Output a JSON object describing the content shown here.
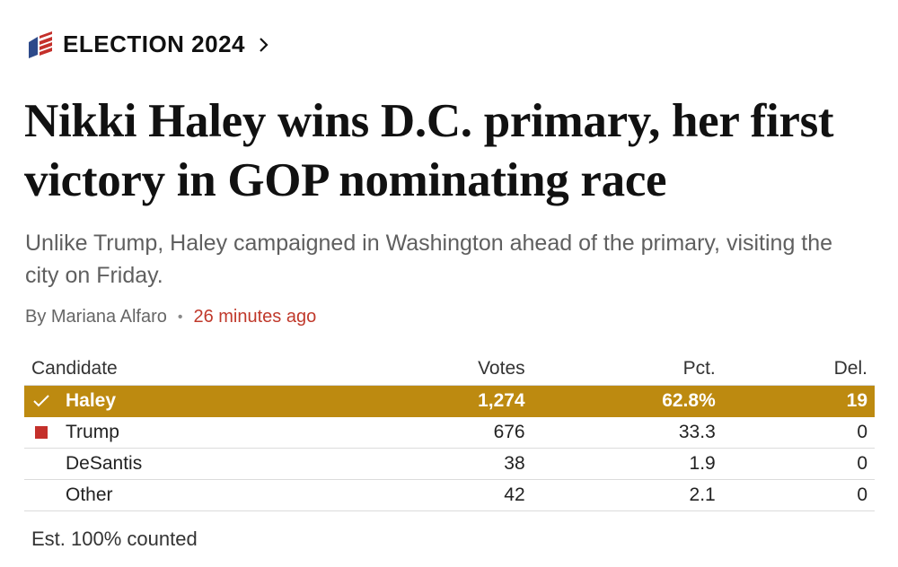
{
  "kicker": {
    "label": "ELECTION 2024",
    "icon": "flag-icon",
    "chevron_icon": "chevron-right-icon",
    "accent_colors": {
      "blue": "#2d4a8a",
      "red": "#c4302b"
    }
  },
  "headline": "Nikki Haley wins D.C. primary, her first victory in GOP nominating race",
  "subhead": "Unlike Trump, Haley campaigned in Washington ahead of the primary, visiting the city on Friday.",
  "byline": {
    "author": "By Mariana Alfaro",
    "separator": "•",
    "time": "26 minutes ago",
    "time_color": "#c0392b"
  },
  "results": {
    "headers": {
      "candidate": "Candidate",
      "votes": "Votes",
      "pct": "Pct.",
      "del": "Del."
    },
    "winner_color": "#bd8a10",
    "rows": [
      {
        "candidate": "Haley",
        "votes": "1,274",
        "pct": "62.8%",
        "del": "19",
        "winner": true,
        "marker": "check-icon"
      },
      {
        "candidate": "Trump",
        "votes": "676",
        "pct": "33.3",
        "del": "0",
        "marker": "red-square-icon"
      },
      {
        "candidate": "DeSantis",
        "votes": "38",
        "pct": "1.9",
        "del": "0"
      },
      {
        "candidate": "Other",
        "votes": "42",
        "pct": "2.1",
        "del": "0"
      }
    ],
    "footnote": "Est. 100% counted"
  }
}
